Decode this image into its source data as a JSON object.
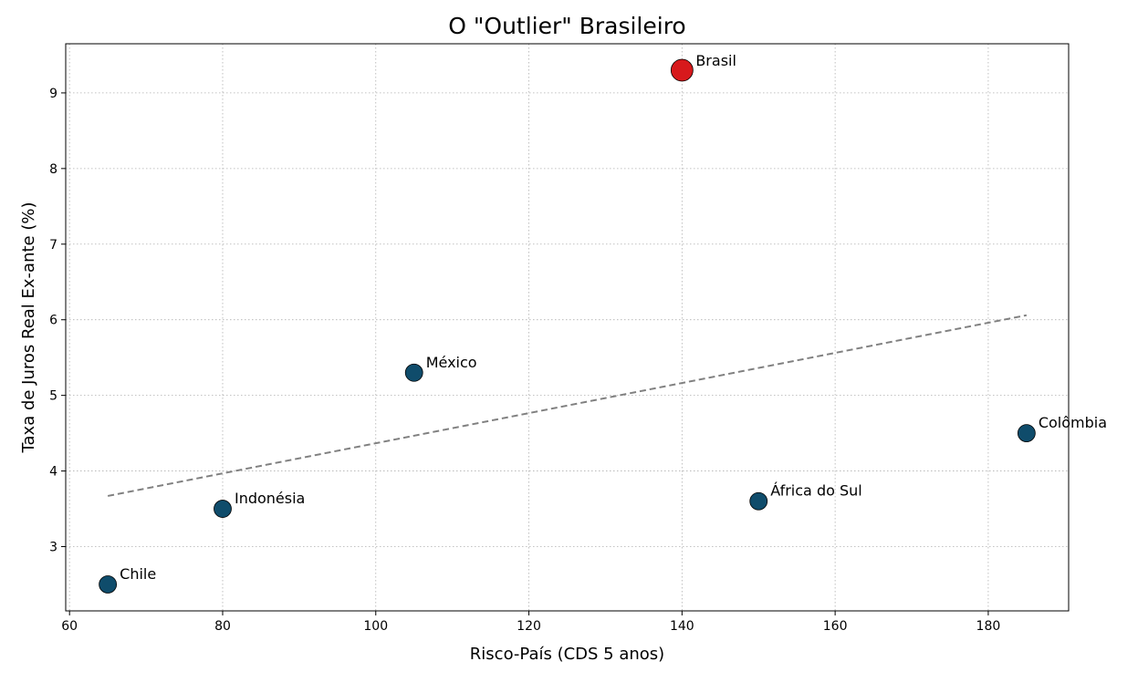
{
  "chart_data": {
    "type": "scatter",
    "title": "O \"Outlier\" Brasileiro",
    "xlabel": "Risco-País (CDS 5 anos)",
    "ylabel": "Taxa de Juros Real Ex-ante (%)",
    "xlim": [
      59.5,
      190.5
    ],
    "ylim": [
      2.15,
      9.65
    ],
    "xticks": [
      60,
      80,
      100,
      120,
      140,
      160,
      180
    ],
    "yticks": [
      3,
      4,
      5,
      6,
      7,
      8,
      9
    ],
    "grid": true,
    "points": [
      {
        "label": "Brasil",
        "x": 140,
        "y": 9.3,
        "highlight": true
      },
      {
        "label": "México",
        "x": 105,
        "y": 5.3,
        "highlight": false
      },
      {
        "label": "Colômbia",
        "x": 185,
        "y": 4.5,
        "highlight": false
      },
      {
        "label": "África do Sul",
        "x": 150,
        "y": 3.6,
        "highlight": false
      },
      {
        "label": "Indonésia",
        "x": 80,
        "y": 3.5,
        "highlight": false
      },
      {
        "label": "Chile",
        "x": 65,
        "y": 2.5,
        "highlight": false
      }
    ],
    "trendline": {
      "x": [
        65,
        185
      ],
      "y": [
        3.67,
        6.06
      ]
    },
    "colors": {
      "point": "#0f4c6b",
      "highlight": "#d7191c",
      "trendline": "#808080",
      "edge": "#000000"
    }
  }
}
